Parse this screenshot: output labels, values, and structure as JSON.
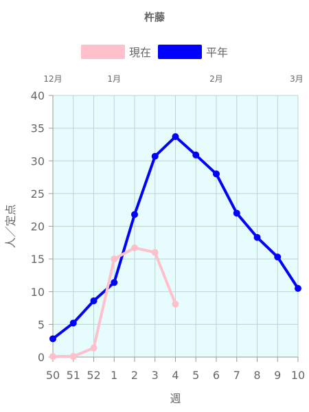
{
  "chart_data": {
    "type": "line",
    "title": "杵藤",
    "xlabel": "週",
    "ylabel": "人／定点",
    "categories": [
      "50",
      "51",
      "52",
      "1",
      "2",
      "3",
      "4",
      "5",
      "6",
      "7",
      "8",
      "9",
      "10"
    ],
    "month_labels": [
      {
        "label": "12月",
        "at": "50"
      },
      {
        "label": "1月",
        "at": "1"
      },
      {
        "label": "2月",
        "at": "6"
      },
      {
        "label": "3月",
        "at": "10"
      }
    ],
    "ylim": [
      0,
      40
    ],
    "yticks": [
      0,
      5,
      10,
      15,
      20,
      25,
      30,
      35,
      40
    ],
    "grid": true,
    "legend_position": "top",
    "plot_background": "#e6fcfd",
    "series": [
      {
        "name": "現在",
        "color": "#ffc0cb",
        "values": [
          0.1,
          0.1,
          1.4,
          15.0,
          16.7,
          16.0,
          8.1,
          null,
          null,
          null,
          null,
          null,
          null
        ]
      },
      {
        "name": "平年",
        "color": "#0000ff",
        "values": [
          2.8,
          5.2,
          8.6,
          11.4,
          21.8,
          30.7,
          33.7,
          30.9,
          28.0,
          22.0,
          18.3,
          15.3,
          10.5
        ]
      }
    ]
  }
}
